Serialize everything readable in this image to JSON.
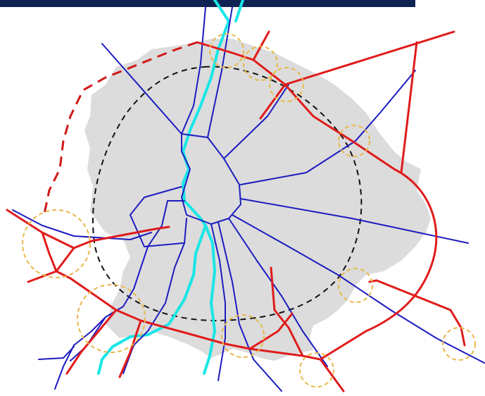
{
  "colors": {
    "background": "#ffffff",
    "header_bar": "#0f2352",
    "urban_area": "#dcdcdc",
    "river": "#19e6e6",
    "radial_road": "#1c1cc0",
    "ring_road": "#e01b1b",
    "planned_ring_road": "#d01818",
    "boundary_ring": "#111111",
    "junction_circle": "#e8b84a"
  },
  "map": {
    "elements": [
      "header-bar",
      "urban-area",
      "river",
      "radial-roads",
      "ring-road",
      "planned-ring-road",
      "boundary-ring",
      "junction-circles"
    ],
    "junction_count": 10
  }
}
